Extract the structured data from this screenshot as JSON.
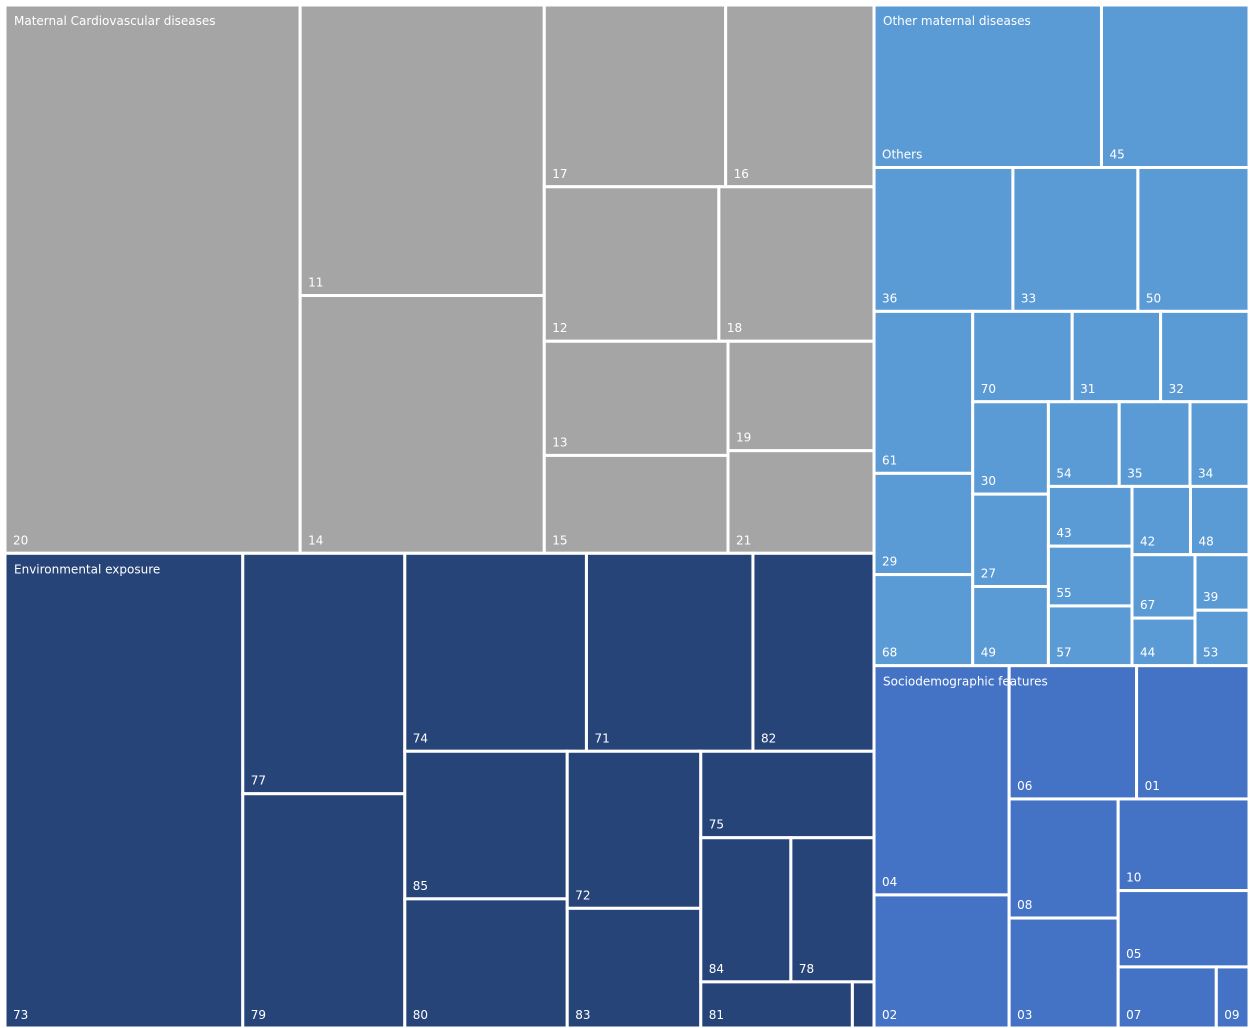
{
  "chart_data": {
    "type": "treemap",
    "groups": [
      {
        "name": "Maternal Cardiovascular diseases",
        "color": "#a5a5a5",
        "labels": [
          "20",
          "11",
          "14",
          "17",
          "16",
          "12",
          "18",
          "13",
          "15",
          "19",
          "21"
        ],
        "values": [
          162,
          71,
          63,
          33,
          27,
          27,
          24,
          21,
          18,
          16,
          15
        ]
      },
      {
        "name": "Environmental exposure",
        "color": "#264478",
        "labels": [
          "73",
          "77",
          "79",
          "74",
          "71",
          "82",
          "85",
          "80",
          "72",
          "83",
          "75",
          "84",
          "78",
          "81",
          null
        ],
        "values": [
          113,
          39,
          38,
          36,
          33,
          24,
          24,
          21,
          21,
          16,
          15,
          13,
          12,
          7,
          1
        ]
      },
      {
        "name": "Other maternal diseases",
        "color": "#5b9bd5",
        "labels": [
          "Others",
          "45",
          "36",
          "33",
          "50",
          "61",
          "29",
          "68",
          "70",
          "31",
          "32",
          "30",
          "27",
          "49",
          "54",
          "35",
          "34",
          "43",
          "55",
          "57",
          "42",
          "48",
          "67",
          "44",
          "39",
          "53"
        ],
        "values": [
          37,
          24,
          20,
          18,
          16,
          16,
          10,
          9,
          9,
          8,
          8,
          7,
          7,
          6,
          6,
          6,
          5,
          5,
          5,
          5,
          4,
          4,
          4,
          3,
          3,
          3
        ]
      },
      {
        "name": "Sociodemographic features",
        "color": "#4472c4",
        "labels": [
          "04",
          "02",
          "06",
          "01",
          "08",
          "03",
          "10",
          "05",
          "07",
          "09"
        ],
        "values": [
          31,
          18,
          17,
          15,
          13,
          12,
          12,
          10,
          6,
          2
        ]
      }
    ]
  }
}
